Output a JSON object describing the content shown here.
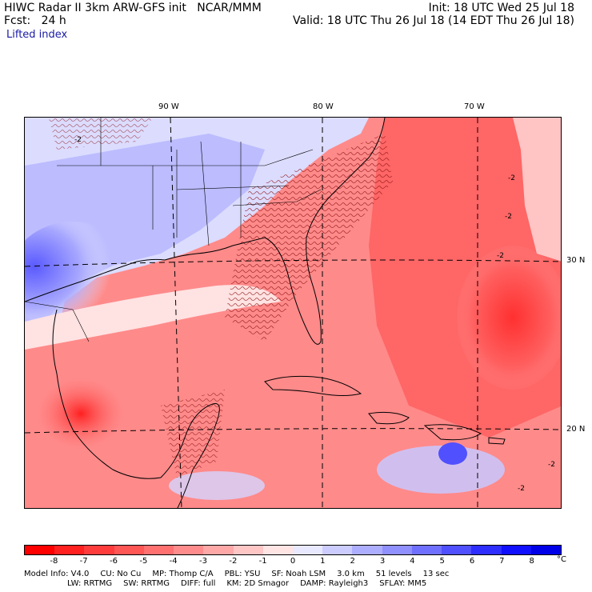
{
  "header": {
    "title_left": "HIWC Radar II 3km ARW-GFS init   NCAR/MMM",
    "title_right": "Init: 18 UTC Wed 25 Jul 18",
    "fcst_left": "Fcst:   24 h",
    "fcst_right": "Valid: 18 UTC Thu 26 Jul 18 (14 EDT Thu 26 Jul 18)",
    "field_name": "Lifted index"
  },
  "map": {
    "lon_labels": [
      "90 W",
      "80 W",
      "70 W"
    ],
    "lat_labels": [
      "30 N",
      "20 N"
    ],
    "contour_labels": [
      "-2",
      "-2",
      "-2",
      "-2",
      "-2",
      "-2"
    ]
  },
  "colorbar": {
    "ticks": [
      "-8",
      "-7",
      "-6",
      "-5",
      "-4",
      "-3",
      "-2",
      "-1",
      "0",
      "1",
      "2",
      "3",
      "4",
      "5",
      "6",
      "7",
      "8"
    ],
    "unit": "°C",
    "colors": [
      "#ff0000",
      "#ff2020",
      "#ff3c3c",
      "#ff5656",
      "#ff7070",
      "#ff8c8c",
      "#ffa8a8",
      "#ffc6c6",
      "#ffe4e4",
      "#e8e8ff",
      "#ccccff",
      "#aeaeff",
      "#9090ff",
      "#7070ff",
      "#5050ff",
      "#2e2eff",
      "#1010ff",
      "#0000e8"
    ]
  },
  "model_info": {
    "line1": [
      "Model Info: V4.0",
      "CU: No Cu",
      "MP: Thomp C/A",
      "PBL: YSU",
      "SF: Noah LSM",
      "3.0 km",
      "51 levels",
      "13 sec"
    ],
    "line2": [
      "LW: RRTMG",
      "SW: RRTMG",
      "DIFF: full",
      "KM: 2D Smagor",
      "DAMP: Rayleigh3",
      "SFLAY: MM5"
    ]
  }
}
